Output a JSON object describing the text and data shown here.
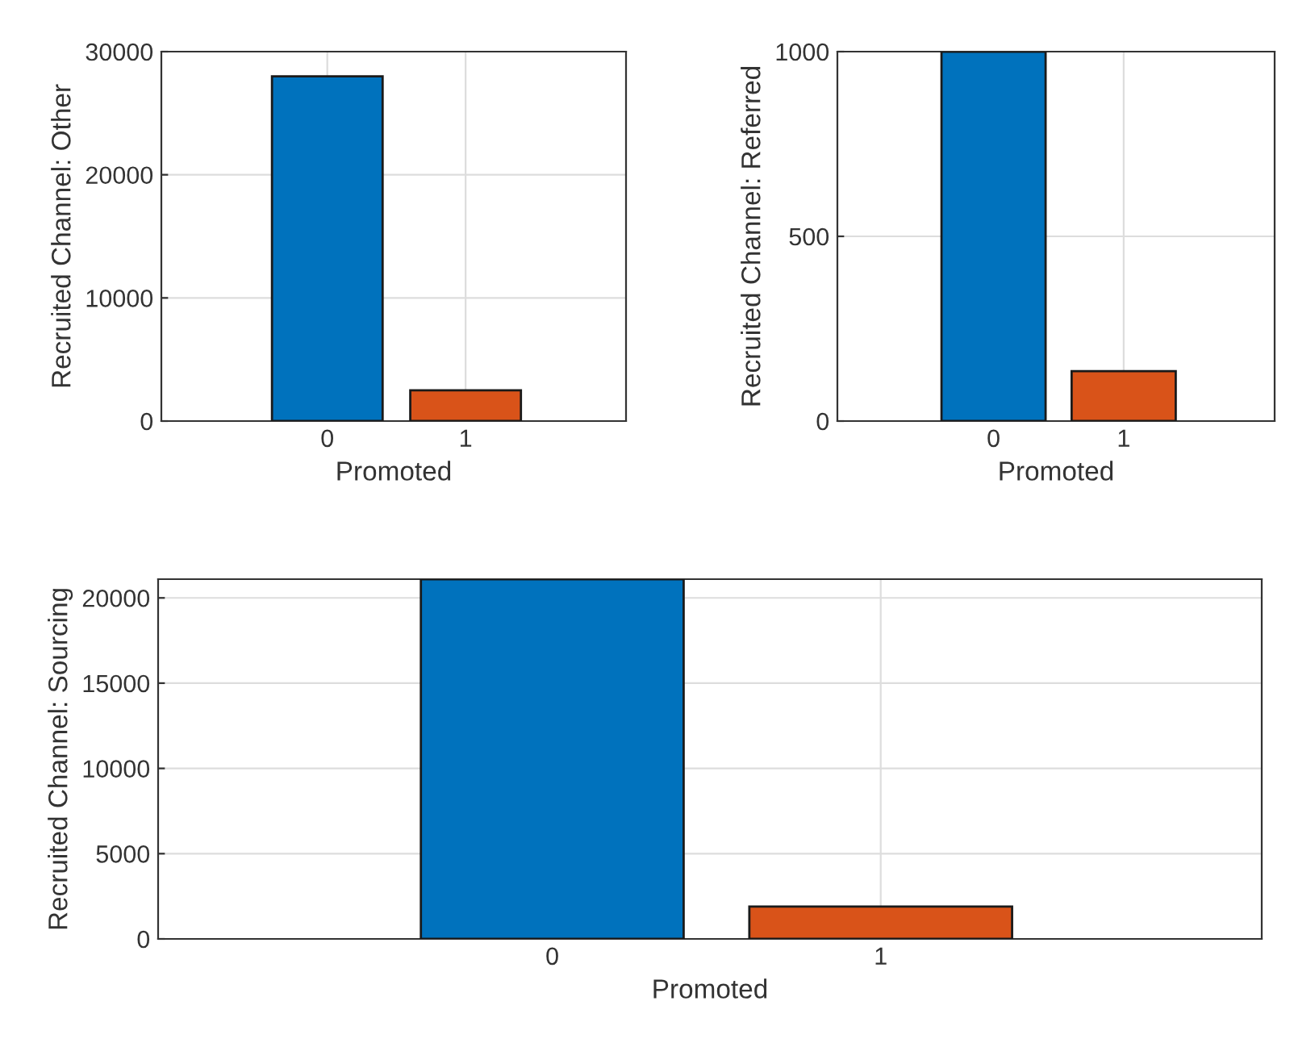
{
  "chart_data": [
    {
      "type": "bar",
      "categories": [
        "0",
        "1"
      ],
      "values": [
        28000,
        2500
      ],
      "colors": [
        "#0072bd",
        "#d95319"
      ],
      "xlabel": "Promoted",
      "ylabel": "Recruited Channel: Other",
      "ylim": [
        0,
        30000
      ],
      "yticks": [
        0,
        10000,
        20000,
        30000
      ],
      "grid": true
    },
    {
      "type": "bar",
      "categories": [
        "0",
        "1"
      ],
      "values": [
        1000,
        135
      ],
      "colors": [
        "#0072bd",
        "#d95319"
      ],
      "xlabel": "Promoted",
      "ylabel": "Recruited Channel: Referred",
      "ylim": [
        0,
        1000
      ],
      "yticks": [
        0,
        500,
        1000
      ],
      "grid": true
    },
    {
      "type": "bar",
      "categories": [
        "0",
        "1"
      ],
      "values": [
        21100,
        1900
      ],
      "colors": [
        "#0072bd",
        "#d95319"
      ],
      "xlabel": "Promoted",
      "ylabel": "Recruited Channel: Sourcing",
      "ylim": [
        0,
        21100
      ],
      "yticks": [
        0,
        5000,
        10000,
        15000,
        20000
      ],
      "grid": true
    }
  ]
}
